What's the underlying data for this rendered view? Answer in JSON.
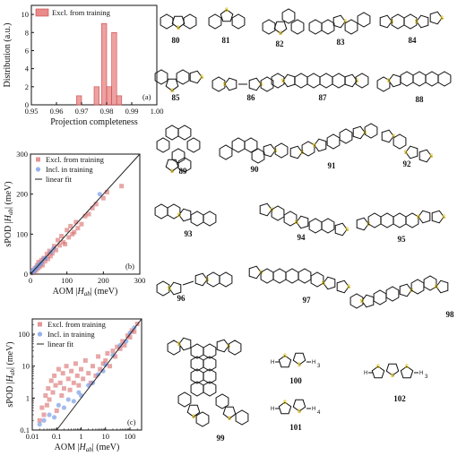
{
  "chart_data": [
    {
      "type": "bar",
      "panel_label": "(a)",
      "xlabel": "Projection completeness",
      "ylabel": "Distribution (a.u.)",
      "xlim": [
        0.95,
        1.0
      ],
      "ylim": [
        0,
        11
      ],
      "x_ticks": [
        "0.95",
        "0.96",
        "0.97",
        "0.98",
        "0.99",
        "1.00"
      ],
      "y_ticks": [
        "0",
        "2",
        "4",
        "6",
        "8",
        "10"
      ],
      "series": [
        {
          "name": "Excl. from training",
          "color": "#e88a8a",
          "bins": [
            [
              0.968,
              0.97,
              1
            ],
            [
              0.975,
              0.977,
              2
            ],
            [
              0.978,
              0.98,
              9
            ],
            [
              0.98,
              0.982,
              2
            ],
            [
              0.982,
              0.984,
              8
            ],
            [
              0.984,
              0.986,
              1
            ]
          ]
        }
      ],
      "legend": "top-left"
    },
    {
      "type": "scatter",
      "panel_label": "(b)",
      "xlabel": "AOM |H_ab| (meV)",
      "ylabel": "sPOD |H_ab| (meV)",
      "xlim": [
        0,
        300
      ],
      "ylim": [
        0,
        300
      ],
      "x_ticks": [
        "0",
        "100",
        "200",
        "300"
      ],
      "y_ticks": [
        "0",
        "100",
        "200",
        "300"
      ],
      "legend": "top-left",
      "series": [
        {
          "name": "Excl. from training",
          "color": "#d96a6a",
          "marker": "square",
          "points": [
            [
              5,
              3
            ],
            [
              8,
              10
            ],
            [
              10,
              6
            ],
            [
              12,
              15
            ],
            [
              15,
              9
            ],
            [
              18,
              22
            ],
            [
              20,
              14
            ],
            [
              22,
              30
            ],
            [
              25,
              18
            ],
            [
              28,
              26
            ],
            [
              30,
              35
            ],
            [
              33,
              22
            ],
            [
              36,
              40
            ],
            [
              40,
              32
            ],
            [
              45,
              50
            ],
            [
              48,
              38
            ],
            [
              52,
              58
            ],
            [
              55,
              45
            ],
            [
              60,
              52
            ],
            [
              65,
              70
            ],
            [
              70,
              60
            ],
            [
              75,
              85
            ],
            [
              80,
              72
            ],
            [
              85,
              95
            ],
            [
              90,
              80
            ],
            [
              95,
              75
            ],
            [
              100,
              110
            ],
            [
              105,
              92
            ],
            [
              110,
              120
            ],
            [
              115,
              100
            ],
            [
              120,
              105
            ],
            [
              125,
              130
            ],
            [
              130,
              115
            ],
            [
              140,
              125
            ],
            [
              150,
              145
            ],
            [
              160,
              150
            ],
            [
              170,
              165
            ],
            [
              180,
              175
            ],
            [
              200,
              190
            ],
            [
              210,
              205
            ],
            [
              250,
              220
            ]
          ]
        },
        {
          "name": "Incl. in training",
          "color": "#7a9ee6",
          "marker": "circle",
          "points": [
            [
              4,
              5
            ],
            [
              7,
              6
            ],
            [
              9,
              11
            ],
            [
              11,
              9
            ],
            [
              14,
              13
            ],
            [
              16,
              18
            ],
            [
              19,
              17
            ],
            [
              23,
              24
            ],
            [
              27,
              25
            ],
            [
              31,
              30
            ],
            [
              38,
              39
            ],
            [
              42,
              40
            ],
            [
              56,
              55
            ],
            [
              63,
              64
            ],
            [
              190,
              200
            ]
          ]
        }
      ],
      "fit": {
        "name": "linear fit",
        "points": [
          [
            0,
            0
          ],
          [
            300,
            300
          ]
        ]
      }
    },
    {
      "type": "scatter",
      "panel_label": "(c)",
      "xlabel": "AOM |H_ab| (meV)",
      "ylabel": "sPOD |H_ab| (meV)",
      "xscale": "log",
      "yscale": "log",
      "xlim": [
        0.01,
        300
      ],
      "ylim": [
        0.1,
        300
      ],
      "x_ticks": [
        "0.01",
        "0.1",
        "1",
        "10",
        "100"
      ],
      "y_ticks": [
        "0.1",
        "1",
        "10",
        "100"
      ],
      "legend": "top-left",
      "series": [
        {
          "name": "Excl. from training",
          "color": "#d96a6a",
          "marker": "square",
          "points": [
            [
              0.02,
              0.2
            ],
            [
              0.025,
              0.5
            ],
            [
              0.03,
              0.3
            ],
            [
              0.035,
              1.2
            ],
            [
              0.04,
              0.6
            ],
            [
              0.045,
              2.0
            ],
            [
              0.05,
              0.9
            ],
            [
              0.06,
              3.5
            ],
            [
              0.07,
              1.5
            ],
            [
              0.08,
              5.0
            ],
            [
              0.09,
              2.5
            ],
            [
              0.1,
              0.4
            ],
            [
              0.12,
              8.0
            ],
            [
              0.14,
              3.0
            ],
            [
              0.16,
              1.2
            ],
            [
              0.18,
              6.0
            ],
            [
              0.2,
              2.0
            ],
            [
              0.25,
              10.0
            ],
            [
              0.3,
              4.0
            ],
            [
              0.35,
              1.8
            ],
            [
              0.4,
              7.0
            ],
            [
              0.5,
              3.0
            ],
            [
              0.6,
              12.0
            ],
            [
              0.7,
              5.0
            ],
            [
              0.8,
              2.5
            ],
            [
              1.0,
              8.0
            ],
            [
              1.2,
              4.0
            ],
            [
              1.5,
              15.0
            ],
            [
              2.0,
              6.0
            ],
            [
              2.5,
              3.0
            ],
            [
              3.0,
              10.0
            ],
            [
              4.0,
              5.0
            ],
            [
              5.0,
              20.0
            ],
            [
              6.0,
              8.0
            ],
            [
              8.0,
              12.0
            ],
            [
              10.0,
              15.0
            ],
            [
              12.0,
              25.0
            ],
            [
              15.0,
              10.0
            ],
            [
              20.0,
              30.0
            ],
            [
              25.0,
              20.0
            ],
            [
              30.0,
              40.0
            ],
            [
              40.0,
              35.0
            ],
            [
              50.0,
              60.0
            ],
            [
              60.0,
              45.0
            ],
            [
              80.0,
              90.0
            ],
            [
              100.0,
              80.0
            ],
            [
              120.0,
              130.0
            ],
            [
              150.0,
              120.0
            ],
            [
              200.0,
              210.0
            ]
          ]
        },
        {
          "name": "Incl. in training",
          "color": "#7a9ee6",
          "marker": "circle",
          "points": [
            [
              0.02,
              0.15
            ],
            [
              0.03,
              0.2
            ],
            [
              0.05,
              0.3
            ],
            [
              0.08,
              0.25
            ],
            [
              0.12,
              0.6
            ],
            [
              0.2,
              0.5
            ],
            [
              0.3,
              0.9
            ],
            [
              0.5,
              0.8
            ],
            [
              0.8,
              1.5
            ],
            [
              1.0,
              1.2
            ],
            [
              2.0,
              2.5
            ],
            [
              3.0,
              3.0
            ],
            [
              5.0,
              5.5
            ],
            [
              8.0,
              7.0
            ],
            [
              10.0,
              11.0
            ],
            [
              20.0,
              22.0
            ],
            [
              40.0,
              45.0
            ],
            [
              70.0,
              60.0
            ],
            [
              100.0,
              110.0
            ],
            [
              150.0,
              160.0
            ]
          ]
        }
      ],
      "fit": {
        "name": "linear fit",
        "points": [
          [
            0.1,
            0.1
          ],
          [
            300,
            300
          ]
        ]
      }
    }
  ],
  "molecules": [
    {
      "id": "80"
    },
    {
      "id": "81"
    },
    {
      "id": "82"
    },
    {
      "id": "83"
    },
    {
      "id": "84"
    },
    {
      "id": "85"
    },
    {
      "id": "86"
    },
    {
      "id": "87"
    },
    {
      "id": "88"
    },
    {
      "id": "89"
    },
    {
      "id": "90"
    },
    {
      "id": "91"
    },
    {
      "id": "92"
    },
    {
      "id": "93"
    },
    {
      "id": "94"
    },
    {
      "id": "95"
    },
    {
      "id": "96"
    },
    {
      "id": "97"
    },
    {
      "id": "98"
    },
    {
      "id": "99"
    },
    {
      "id": "100"
    },
    {
      "id": "101"
    },
    {
      "id": "102"
    }
  ],
  "atom_labels": {
    "sulfur": "S",
    "hydrogen": "H",
    "n100": "3",
    "n101": "4",
    "n102": "3"
  }
}
